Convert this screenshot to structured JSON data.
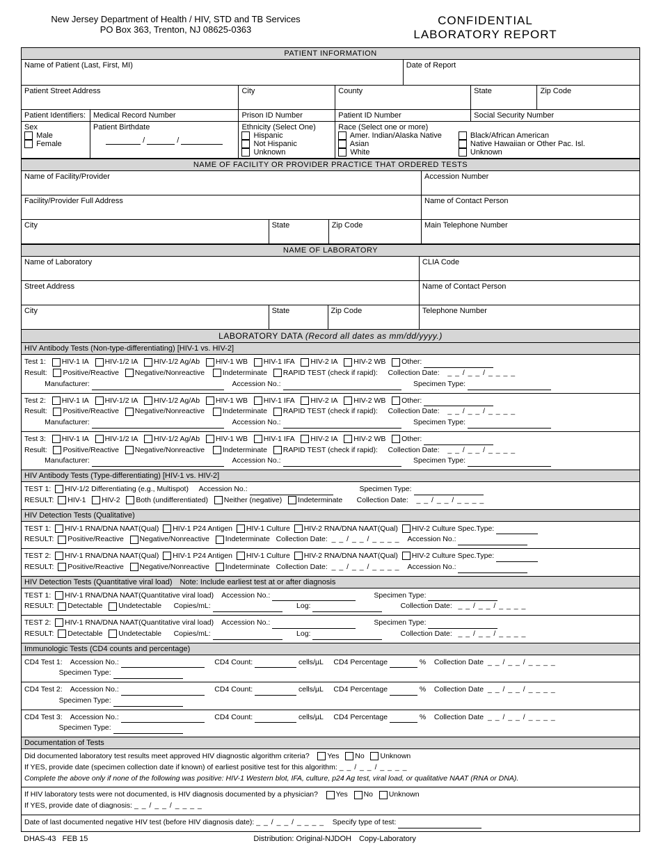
{
  "header": {
    "agency_line1": "New Jersey Department of Health / HIV, STD and TB Services",
    "agency_line2": "PO Box 363, Trenton, NJ 08625-0363",
    "title_line1": "CONFIDENTIAL",
    "title_line2": "LABORATORY REPORT"
  },
  "sections": {
    "patient_info": "PATIENT INFORMATION",
    "facility": "NAME OF FACILITY OR PROVIDER PRACTICE THAT ORDERED TESTS",
    "lab": "NAME OF LABORATORY",
    "lab_data": "LABORATORY DATA",
    "lab_data_note": "(Record all dates as mm/dd/yyyy.)"
  },
  "patient": {
    "name_label": "Name of Patient (Last, First, MI)",
    "report_date_label": "Date of Report",
    "street_label": "Patient Street Address",
    "city_label": "City",
    "county_label": "County",
    "state_label": "State",
    "zip_label": "Zip Code",
    "identifiers_label": "Patient Identifiers:",
    "mrn_label": "Medical Record Number",
    "prison_label": "Prison ID Number",
    "pid_label": "Patient ID Number",
    "ssn_label": "Social Security Number",
    "sex_label": "Sex",
    "sex_male": "Male",
    "sex_female": "Female",
    "birthdate_label": "Patient Birthdate",
    "ethnicity_label": "Ethnicity (Select One)",
    "eth_hispanic": "Hispanic",
    "eth_not": "Not Hispanic",
    "eth_unknown": "Unknown",
    "race_label": "Race (Select one or more)",
    "race_ai": "Amer. Indian/Alaska Native",
    "race_asian": "Asian",
    "race_white": "White",
    "race_black": "Black/African American",
    "race_nh": "Native Hawaiian or Other Pac. Isl.",
    "race_unknown": "Unknown"
  },
  "facility": {
    "name_label": "Name of Facility/Provider",
    "accession_label": "Accession Number",
    "address_label": "Facility/Provider Full Address",
    "contact_label": "Name of Contact Person",
    "city_label": "City",
    "state_label": "State",
    "zip_label": "Zip Code",
    "phone_label": "Main Telephone Number"
  },
  "lab": {
    "name_label": "Name of Laboratory",
    "clia_label": "CLIA Code",
    "street_label": "Street Address",
    "contact_label": "Name of Contact Person",
    "city_label": "City",
    "state_label": "State",
    "zip_label": "Zip Code",
    "phone_label": "Telephone Number"
  },
  "tests": {
    "antibody_ntd_header": "HIV Antibody Tests (Non-type-differentiating) [HIV-1 vs. HIV-2]",
    "antibody_td_header": "HIV Antibody Tests (Type-differentiating) [HIV-1 vs. HIV-2]",
    "detection_qual_header": "HIV Detection Tests (Qualitative)",
    "detection_quant_header": "HIV Detection Tests (Quantitative viral load) Note: Include earliest test at or after diagnosis",
    "immuno_header": "Immunologic Tests (CD4 counts and percentage)",
    "documentation_header": "Documentation of Tests",
    "test1_label": "Test 1:",
    "test2_label": "Test 2:",
    "test3_label": "Test 3:",
    "test1_lbl_sc": "TEST 1:",
    "test2_lbl_sc": "TEST 2:",
    "result_label": "Result:",
    "result_label_sc": "RESULT:",
    "manufacturer_label": "Manufacturer:",
    "accession_label": "Accession No.:",
    "specimen_label": "Specimen Type:",
    "collection_label": "Collection Date:",
    "date_ph": "_ _ / _ _ / _ _ _ _",
    "opt_hiv1ia": "HIV-1 IA",
    "opt_hiv12ia": "HIV-1/2 IA",
    "opt_hiv12agab": "HIV-1/2 Ag/Ab",
    "opt_hiv1wb": "HIV-1 WB",
    "opt_hiv1ifa": "HIV-1 IFA",
    "opt_hiv2ia": "HIV-2 IA",
    "opt_hiv2wb": "HIV-2 WB",
    "opt_other": "Other:",
    "opt_pos": "Positive/Reactive",
    "opt_neg": "Negative/Nonreactive",
    "opt_indet": "Indeterminate",
    "opt_rapid": "RAPID TEST (check if rapid):",
    "td_opt1": "HIV-1/2 Differentiating (e.g., Multispot)",
    "td_r_hiv1": "HIV-1",
    "td_r_hiv2": "HIV-2",
    "td_r_both": "Both (undifferentiated)",
    "td_r_neither": "Neither (negative)",
    "td_r_indet": "Indeterminate",
    "qual_opt1": "HIV-1 RNA/DNA NAAT(Qual)",
    "qual_opt2": "HIV-1 P24 Antigen",
    "qual_opt3": "HIV-1 Culture",
    "qual_opt4": "HIV-2 RNA/DNA NAAT(Qual)",
    "qual_opt5": "HIV-2 Culture",
    "qual_spectype": "Spec.Type:",
    "quant_opt1": "HIV-1 RNA/DNA NAAT(Quantitative viral load)",
    "quant_det": "Detectable",
    "quant_undet": "Undetectable",
    "quant_copies": "Copies/mL:",
    "quant_log": "Log:",
    "cd4_test1": "CD4 Test 1:",
    "cd4_test2": "CD4 Test 2:",
    "cd4_test3": "CD4 Test 3:",
    "cd4_count": "CD4 Count:",
    "cd4_cellsul": "cells/µL",
    "cd4_pct": "CD4 Percentage",
    "cd4_pctsym": "%",
    "cd4_date": "Collection Date",
    "doc_q1": "Did documented laboratory test results meet approved HIV diagnostic algorithm criteria?",
    "doc_yes": "Yes",
    "doc_no": "No",
    "doc_unknown": "Unknown",
    "doc_q1_if": "If YES, provide date (specimen collection date if known) of earliest positive test for this algorithm:",
    "doc_q1_complete": "Complete the above only if none of the following was positive: HIV-1 Western blot, IFA, culture, p24 Ag test, viral load, or qualitative NAAT (RNA or DNA).",
    "doc_q2": "If HIV laboratory tests were not documented, is HIV diagnosis documented by a physician?",
    "doc_q2_if": "If YES, provide date of diagnosis:",
    "doc_q3_a": "Date of last documented negative HIV test (before HIV diagnosis date):",
    "doc_q3_b": "Specify type of test:"
  },
  "footer": {
    "form_no": "DHAS-43",
    "form_date": "FEB 15",
    "distribution": "Distribution: Original-NJDOH Copy-Laboratory"
  }
}
